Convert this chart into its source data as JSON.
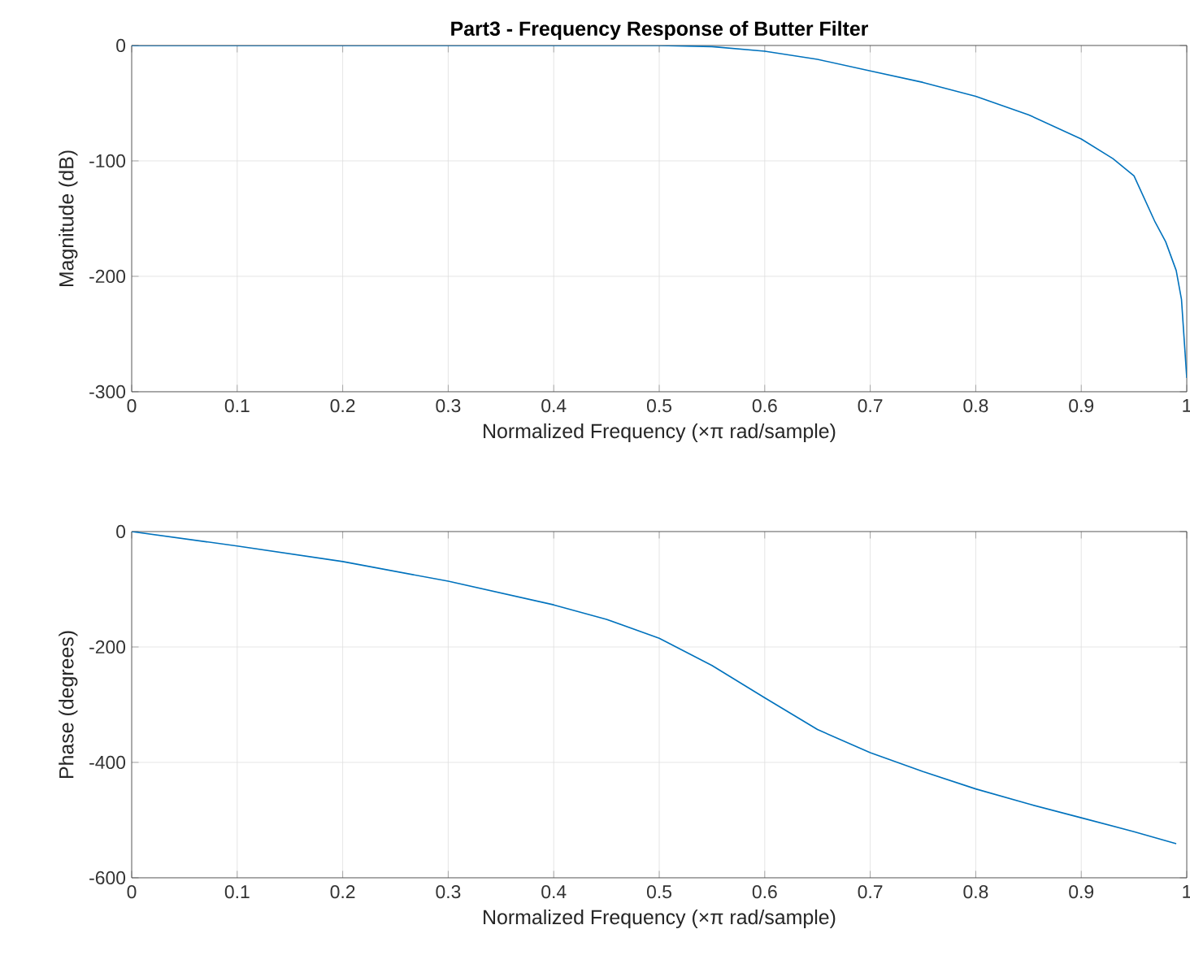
{
  "chart_data": [
    {
      "type": "line",
      "title": "Part3 - Frequency Response of Butter Filter",
      "xlabel": "Normalized Frequency  (×π rad/sample)",
      "ylabel": "Magnitude (dB)",
      "xlim": [
        0,
        1
      ],
      "ylim": [
        -300,
        0
      ],
      "xticks": [
        0,
        0.1,
        0.2,
        0.3,
        0.4,
        0.5,
        0.6,
        0.7,
        0.8,
        0.9,
        1
      ],
      "yticks": [
        -300,
        -200,
        -100,
        0
      ],
      "grid": true,
      "series": [
        {
          "color": "#0072bd",
          "x": [
            0,
            0.1,
            0.2,
            0.3,
            0.4,
            0.5,
            0.55,
            0.6,
            0.65,
            0.7,
            0.75,
            0.8,
            0.85,
            0.9,
            0.93,
            0.95,
            0.97,
            0.98,
            0.99,
            0.995,
            1
          ],
          "values": [
            0,
            0,
            0,
            0,
            0,
            0,
            -1,
            -5,
            -12,
            -22,
            -32,
            -44,
            -60,
            -81,
            -98,
            -113,
            -153,
            -170,
            -195,
            -220,
            -288
          ]
        }
      ]
    },
    {
      "type": "line",
      "xlabel": "Normalized Frequency  (×π rad/sample)",
      "ylabel": "Phase (degrees)",
      "xlim": [
        0,
        1
      ],
      "ylim": [
        -600,
        0
      ],
      "xticks": [
        0,
        0.1,
        0.2,
        0.3,
        0.4,
        0.5,
        0.6,
        0.7,
        0.8,
        0.9,
        1
      ],
      "yticks": [
        -600,
        -400,
        -200,
        0
      ],
      "grid": true,
      "series": [
        {
          "color": "#0072bd",
          "x": [
            0,
            0.1,
            0.2,
            0.3,
            0.4,
            0.45,
            0.5,
            0.55,
            0.6,
            0.65,
            0.7,
            0.75,
            0.8,
            0.85,
            0.9,
            0.95,
            0.99
          ],
          "values": [
            0,
            -25,
            -52,
            -86,
            -127,
            -152,
            -185,
            -232,
            -288,
            -343,
            -383,
            -416,
            -446,
            -472,
            -496,
            -520,
            -541
          ]
        }
      ]
    }
  ]
}
